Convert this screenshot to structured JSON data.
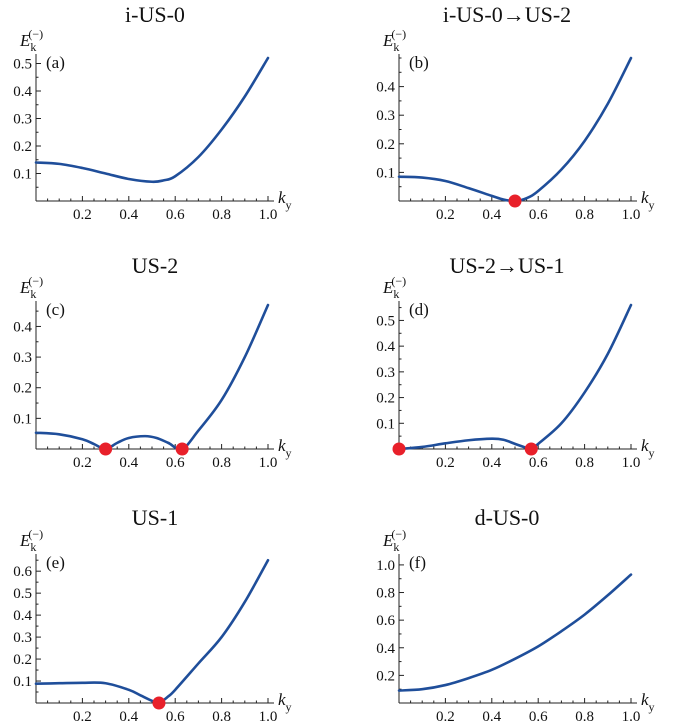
{
  "chart_data": [
    {
      "type": "line",
      "title": "i-US-0",
      "panel_label": "(a)",
      "ylabel": "E_k^(-)",
      "xlabel": "k_y",
      "xlim": [
        0,
        1.0
      ],
      "ylim": [
        0,
        0.52
      ],
      "xticks": [
        "0.2",
        "0.4",
        "0.6",
        "0.8",
        "1.0"
      ],
      "yticks": [
        "0.1",
        "0.2",
        "0.3",
        "0.4",
        "0.5"
      ],
      "series": [
        {
          "x": [
            0,
            0.1,
            0.2,
            0.3,
            0.4,
            0.5,
            0.55,
            0.6,
            0.7,
            0.8,
            0.9,
            1.0
          ],
          "y": [
            0.14,
            0.135,
            0.12,
            0.1,
            0.08,
            0.07,
            0.075,
            0.09,
            0.16,
            0.26,
            0.38,
            0.52
          ]
        }
      ],
      "critical_points": []
    },
    {
      "type": "line",
      "title": "i-US-0→US-2",
      "panel_label": "(b)",
      "ylabel": "E_k^(-)",
      "xlabel": "k_y",
      "xlim": [
        0,
        1.0
      ],
      "ylim": [
        0,
        0.5
      ],
      "xticks": [
        "0.2",
        "0.4",
        "0.6",
        "0.8",
        "1.0"
      ],
      "yticks": [
        "0.1",
        "0.2",
        "0.3",
        "0.4"
      ],
      "series": [
        {
          "x": [
            0,
            0.1,
            0.2,
            0.3,
            0.4,
            0.45,
            0.5,
            0.55,
            0.6,
            0.7,
            0.8,
            0.9,
            1.0
          ],
          "y": [
            0.085,
            0.082,
            0.07,
            0.045,
            0.018,
            0.005,
            0.0,
            0.01,
            0.035,
            0.11,
            0.21,
            0.34,
            0.5
          ]
        }
      ],
      "critical_points": [
        {
          "x": 0.5,
          "y": 0.0
        }
      ]
    },
    {
      "type": "line",
      "title": "US-2",
      "panel_label": "(c)",
      "ylabel": "E_k^(-)",
      "xlabel": "k_y",
      "xlim": [
        0,
        1.0
      ],
      "ylim": [
        0,
        0.47
      ],
      "xticks": [
        "0.2",
        "0.4",
        "0.6",
        "0.8",
        "1.0"
      ],
      "yticks": [
        "0.1",
        "0.2",
        "0.3",
        "0.4"
      ],
      "series": [
        {
          "x": [
            0,
            0.1,
            0.2,
            0.25,
            0.3,
            0.35,
            0.4,
            0.47,
            0.52,
            0.57,
            0.63,
            0.7,
            0.8,
            0.9,
            1.0
          ],
          "y": [
            0.053,
            0.048,
            0.032,
            0.016,
            0.0,
            0.02,
            0.036,
            0.042,
            0.036,
            0.02,
            0.0,
            0.06,
            0.16,
            0.3,
            0.47
          ]
        }
      ],
      "critical_points": [
        {
          "x": 0.3,
          "y": 0.0
        },
        {
          "x": 0.63,
          "y": 0.0
        }
      ]
    },
    {
      "type": "line",
      "title": "US-2→US-1",
      "panel_label": "(d)",
      "ylabel": "E_k^(-)",
      "xlabel": "k_y",
      "xlim": [
        0,
        1.0
      ],
      "ylim": [
        0,
        0.56
      ],
      "xticks": [
        "0.2",
        "0.4",
        "0.6",
        "0.8",
        "1.0"
      ],
      "yticks": [
        "0.1",
        "0.2",
        "0.3",
        "0.4",
        "0.5"
      ],
      "series": [
        {
          "x": [
            0,
            0.1,
            0.2,
            0.3,
            0.4,
            0.45,
            0.5,
            0.55,
            0.57,
            0.6,
            0.7,
            0.8,
            0.9,
            1.0
          ],
          "y": [
            0.0,
            0.008,
            0.022,
            0.034,
            0.04,
            0.036,
            0.02,
            0.004,
            0.0,
            0.02,
            0.1,
            0.22,
            0.37,
            0.56
          ]
        }
      ],
      "critical_points": [
        {
          "x": 0.0,
          "y": 0.0
        },
        {
          "x": 0.57,
          "y": 0.0
        }
      ]
    },
    {
      "type": "line",
      "title": "US-1",
      "panel_label": "(e)",
      "ylabel": "E_k^(-)",
      "xlabel": "k_y",
      "xlim": [
        0,
        1.0
      ],
      "ylim": [
        0,
        0.66
      ],
      "xticks": [
        "0.2",
        "0.4",
        "0.6",
        "0.8",
        "1.0"
      ],
      "yticks": [
        "0.1",
        "0.2",
        "0.3",
        "0.4",
        "0.5",
        "0.6"
      ],
      "series": [
        {
          "x": [
            0,
            0.1,
            0.2,
            0.3,
            0.4,
            0.45,
            0.5,
            0.53,
            0.57,
            0.6,
            0.7,
            0.8,
            0.9,
            1.0
          ],
          "y": [
            0.088,
            0.09,
            0.092,
            0.09,
            0.06,
            0.035,
            0.01,
            0.0,
            0.03,
            0.06,
            0.18,
            0.3,
            0.46,
            0.65
          ]
        }
      ],
      "critical_points": [
        {
          "x": 0.53,
          "y": 0.0
        }
      ]
    },
    {
      "type": "line",
      "title": "d-US-0",
      "panel_label": "(f)",
      "ylabel": "E_k^(-)",
      "xlabel": "k_y",
      "xlim": [
        0,
        1.0
      ],
      "ylim": [
        0,
        1.05
      ],
      "xticks": [
        "0.2",
        "0.4",
        "0.6",
        "0.8",
        "1.0"
      ],
      "yticks": [
        "0.2",
        "0.4",
        "0.6",
        "0.8",
        "1.0"
      ],
      "series": [
        {
          "x": [
            0,
            0.1,
            0.2,
            0.3,
            0.4,
            0.5,
            0.6,
            0.7,
            0.8,
            0.9,
            1.0
          ],
          "y": [
            0.09,
            0.1,
            0.13,
            0.18,
            0.24,
            0.32,
            0.41,
            0.52,
            0.64,
            0.78,
            0.93
          ]
        }
      ],
      "critical_points": []
    }
  ],
  "style": {
    "curve_color": "#1f4e9a",
    "marker_color": "#e8202a",
    "axis_color": "#222222",
    "background": "#ffffff"
  }
}
